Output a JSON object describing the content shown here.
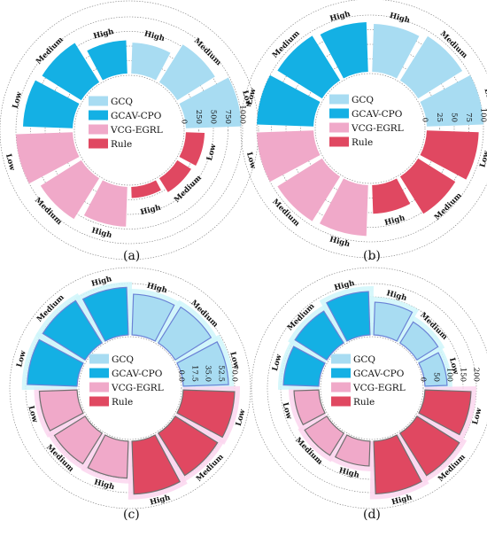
{
  "chart_data": [
    {
      "type": "polar-bar",
      "caption": "(a)",
      "rmax": 1000,
      "ticks": [
        "0",
        "250",
        "500",
        "750",
        "1000"
      ],
      "legend": [
        "GCQ",
        "GCAV-CPO",
        "VCG-EGRL",
        "Rule"
      ],
      "categories": [
        "High",
        "Medium",
        "Low"
      ],
      "series": [
        {
          "name": "GCQ",
          "values": [
            560,
            790,
            980
          ]
        },
        {
          "name": "GCAV-CPO",
          "values": [
            600,
            820,
            880
          ]
        },
        {
          "name": "VCG-EGRL",
          "values": [
            710,
            850,
            1000
          ]
        },
        {
          "name": "Rule",
          "values": [
            220,
            310,
            350
          ]
        }
      ]
    },
    {
      "type": "polar-bar",
      "caption": "(b)",
      "rmax": 100,
      "ticks": [
        "0",
        "25",
        "50",
        "75",
        "100"
      ],
      "legend": [
        "GCQ",
        "GCAV-CPO",
        "VCG-EGRL",
        "Rule"
      ],
      "categories": [
        "High",
        "Medium",
        "Low"
      ],
      "series": [
        {
          "name": "GCQ",
          "values": [
            85,
            92,
            100
          ]
        },
        {
          "name": "GCAV-CPO",
          "values": [
            88,
            93,
            100
          ]
        },
        {
          "name": "VCG-EGRL",
          "values": [
            90,
            93,
            100
          ]
        },
        {
          "name": "Rule",
          "values": [
            52,
            78,
            92
          ]
        }
      ]
    },
    {
      "type": "polar-bar",
      "caption": "(c)",
      "rmax": 70,
      "ticks": [
        "0.0",
        "17.5",
        "35.0",
        "52.5",
        "70.0"
      ],
      "legend": [
        "GCQ",
        "GCAV-CPO",
        "VCG-EGRL",
        "Rule"
      ],
      "categories": [
        "High",
        "Medium",
        "Low"
      ],
      "series": [
        {
          "name": "GCQ",
          "values": [
            56,
            58,
            62
          ]
        },
        {
          "name": "GCAV-CPO",
          "values": [
            65,
            68,
            68
          ]
        },
        {
          "name": "VCG-EGRL",
          "values": [
            51,
            50,
            52
          ]
        },
        {
          "name": "Rule",
          "values": [
            72,
            68,
            70
          ]
        }
      ]
    },
    {
      "type": "polar-bar",
      "caption": "(d)",
      "rmax": 200,
      "ticks": [
        "0",
        "50",
        "100",
        "150",
        "200"
      ],
      "legend": [
        "GCQ",
        "GCAV-CPO",
        "VCG-EGRL",
        "Rule"
      ],
      "categories": [
        "High",
        "Medium",
        "Low"
      ],
      "series": [
        {
          "name": "GCQ",
          "values": [
            130,
            100,
            90
          ]
        },
        {
          "name": "GCAV-CPO",
          "values": [
            170,
            148,
            140
          ]
        },
        {
          "name": "VCG-EGRL",
          "values": [
            100,
            105,
            100
          ]
        },
        {
          "name": "Rule",
          "values": [
            205,
            195,
            180
          ]
        }
      ]
    }
  ],
  "colors": {
    "GCQ": "#a8dcf2",
    "GCAV-CPO": "#14b0e4",
    "VCG-EGRL": "#f0a9c9",
    "Rule": "#e04861",
    "glow_cyan": "#cff6fa",
    "glow_pink": "#fbd6ee",
    "border_blue": "#6a82d6",
    "border_grey": "#707070"
  }
}
